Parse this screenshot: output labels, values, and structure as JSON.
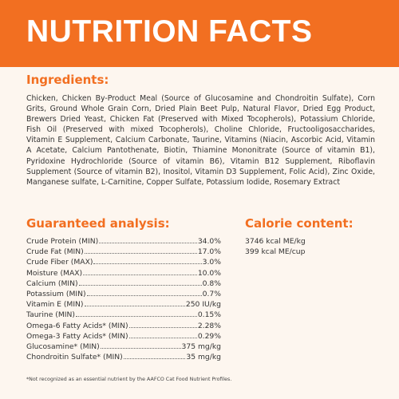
{
  "banner": {
    "title": "NUTRITION FACTS",
    "color": "#f26f21"
  },
  "ingredients": {
    "heading": "Ingredients:",
    "text": "Chicken, Chicken By-Product Meal (Source of Glucosamine and Chondroitin Sulfate), Corn Grits, Ground Whole Grain Corn, Dried Plain Beet Pulp, Natural Flavor, Dried Egg Product, Brewers Dried Yeast, Chicken Fat (Preserved with Mixed Tocopherols), Potassium Chloride, Fish Oil (Preserved with mixed Tocopherols), Choline Chloride, Fructooligosaccharides, Vitamin E Supplement, Calcium Carbonate, Taurine, Vitamins (Niacin, Ascorbic Acid, Vitamin A Acetate, Calcium Pantothenate, Biotin, Thiamine Mononitrate (Source of vitamin B1), Pyridoxine Hydrochloride (Source of vitamin B6), Vitamin B12 Supplement, Riboflavin Supplement (Source of vitamin B2), Inositol, Vitamin D3 Supplement, Folic Acid), Zinc Oxide, Manganese sulfate, L-Carnitine, Copper Sulfate, Potassium Iodide, Rosemary Extract"
  },
  "guaranteed_analysis": {
    "heading": "Guaranteed analysis:",
    "rows": [
      {
        "name": "Crude Protein (MIN)",
        "value": "34.0%"
      },
      {
        "name": "Crude Fat (MIN)",
        "value": "17.0%"
      },
      {
        "name": "Crude Fiber (MAX)",
        "value": "3.0%"
      },
      {
        "name": "Moisture (MAX)",
        "value": "10.0%"
      },
      {
        "name": "Calcium (MIN)",
        "value": "0.8%"
      },
      {
        "name": "Potassium (MIN)",
        "value": "0.7%"
      },
      {
        "name": "Vitamin E (MIN)",
        "value": "250 IU/kg"
      },
      {
        "name": "Taurine (MIN)",
        "value": "0.15%"
      },
      {
        "name": "Omega-6 Fatty Acids* (MIN)",
        "value": "2.28%"
      },
      {
        "name": "Omega-3 Fatty Acids* (MIN)",
        "value": "0.29%"
      },
      {
        "name": "Glucosamine* (MIN)",
        "value": "375 mg/kg"
      },
      {
        "name": "Chondroitin Sulfate* (MIN)",
        "value": "35 mg/kg"
      }
    ]
  },
  "calorie_content": {
    "heading": "Calorie content:",
    "lines": [
      "3746 kcal ME/kg",
      "399 kcal ME/cup"
    ]
  },
  "footnote": "*Not recognized as an essential nutrient by the AAFCO Cat Food Nutrient Profiles."
}
